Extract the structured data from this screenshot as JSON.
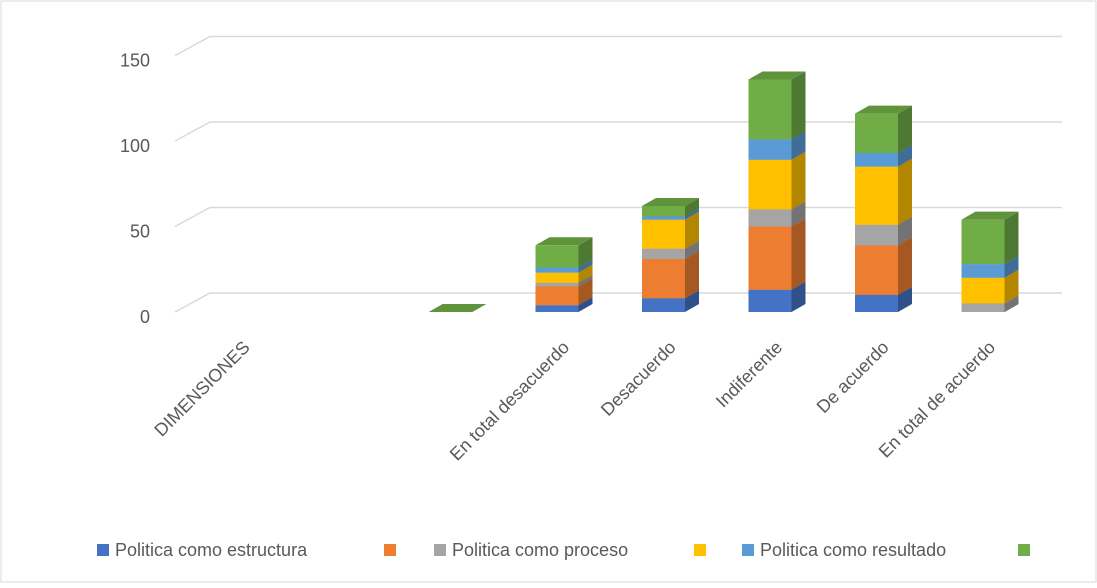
{
  "chart_data": {
    "type": "bar3d_stacked",
    "categories": [
      "DIMENSIONES",
      null,
      null,
      "En total desacuerdo",
      "Desacuerdo",
      "Indiferente",
      "De acuerdo",
      "En total de acuerdo"
    ],
    "series": [
      {
        "name": "Politica como estructura",
        "color": "#4472c4",
        "values": [
          null,
          null,
          0,
          4,
          8,
          13,
          10,
          0
        ]
      },
      {
        "name": null,
        "color": "#ed7d31",
        "values": [
          null,
          null,
          0,
          11,
          23,
          37,
          29,
          0
        ]
      },
      {
        "name": "Politica como proceso",
        "color": "#a5a5a5",
        "values": [
          null,
          null,
          0,
          2,
          6,
          10,
          12,
          5
        ]
      },
      {
        "name": null,
        "color": "#ffc000",
        "values": [
          null,
          null,
          0,
          6,
          17,
          29,
          34,
          15
        ]
      },
      {
        "name": "Politica como resultado",
        "color": "#5b9bd5",
        "values": [
          null,
          null,
          0,
          3,
          2,
          12,
          8,
          8
        ]
      },
      {
        "name": null,
        "color": "#70ad47",
        "values": [
          null,
          null,
          0,
          13,
          6,
          35,
          23,
          26
        ]
      }
    ],
    "ylim": [
      0,
      150
    ],
    "yticks": [
      0,
      50,
      100,
      150
    ],
    "grid": true,
    "legend": "bottom"
  }
}
